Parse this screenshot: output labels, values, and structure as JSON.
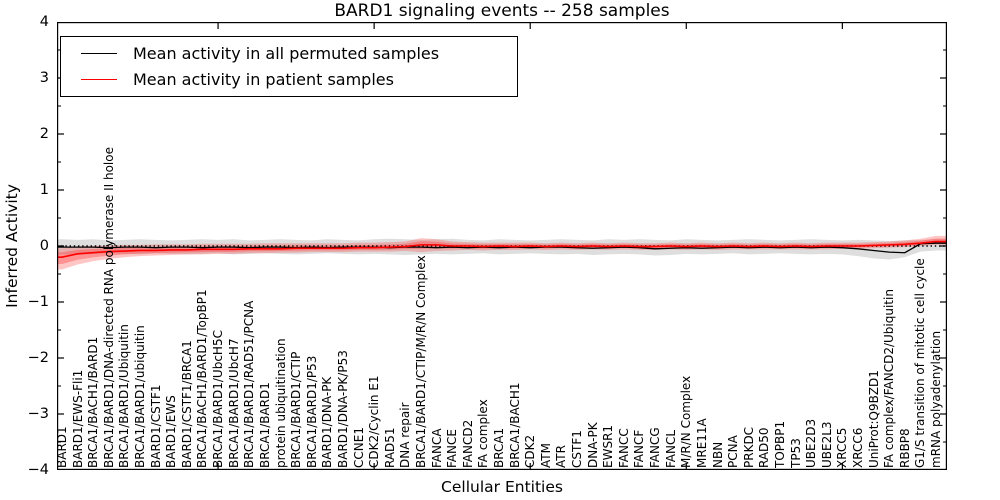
{
  "chart_data": {
    "type": "line",
    "title": "BARD1 signaling events -- 258 samples",
    "xlabel": "Cellular Entities",
    "ylabel": "Inferred Activity",
    "ylim": [
      -4,
      4
    ],
    "yticks": [
      4,
      3,
      2,
      1,
      0,
      -1,
      -2,
      -3,
      -4
    ],
    "xtick_indices": [
      10,
      20,
      30,
      40,
      50
    ],
    "grid": false,
    "legend_position": "upper left",
    "zero_reference_line": "dotted black at y=0",
    "categories": [
      "BARD1",
      "BARD1/EWS-Fli1",
      "BRCA1/BACH1/BARD1",
      "BRCA1/BARD1/DNA-directed RNA polymerase II holoe",
      "BRCA1/BARD1/Ubiquitin",
      "BRCA1/BARD1/ubiquitin",
      "BARD1/CSTF1",
      "BARD1/EWS",
      "BARD1/CSTF1/BRCA1",
      "BRCA1/BACH1/BARD1/TopBP1",
      "BRCA1/BARD1/UbcH5C",
      "BRCA1/BARD1/UbcH7",
      "BRCA1/BARD1/RAD51/PCNA",
      "BRCA1/BARD1",
      "protein ubiquitination",
      "BRCA1/BARD1/CTIP",
      "BRCA1/BARD1/P53",
      "BARD1/DNA-PK",
      "BARD1/DNA-PK/P53",
      "CCNE1",
      "CDK2/Cyclin E1",
      "RAD51",
      "DNA repair",
      "BRCA1/BARD1/CTIP/M/R/N Complex",
      "FANCA",
      "FANCE",
      "FANCD2",
      "FA complex",
      "BRCA1",
      "BRCA1/BACH1",
      "CDK2",
      "ATM",
      "ATR",
      "CSTF1",
      "DNA-PK",
      "EWSR1",
      "FANCC",
      "FANCF",
      "FANCG",
      "FANCL",
      "M/R/N Complex",
      "MRE11A",
      "NBN",
      "PCNA",
      "PRKDC",
      "RAD50",
      "TOPBP1",
      "TP53",
      "UBE2D3",
      "UBE2L3",
      "XRCC5",
      "XRCC6",
      "UniProt:Q9BZD1",
      "FA complex/FANCD2/Ubiquitin",
      "RBBP8",
      "G1/S transition of mitotic cell cycle",
      "mRNA polyadenylation"
    ],
    "series": [
      {
        "name": "Mean activity in all permuted samples",
        "color": "#000000",
        "band_color": "#c8c8c8",
        "values": [
          -0.02,
          -0.02,
          -0.02,
          -0.03,
          -0.02,
          -0.02,
          -0.03,
          -0.02,
          -0.02,
          -0.03,
          -0.02,
          -0.02,
          -0.03,
          -0.02,
          -0.02,
          -0.03,
          -0.02,
          -0.03,
          -0.02,
          -0.02,
          -0.02,
          -0.03,
          -0.02,
          -0.02,
          -0.03,
          -0.02,
          -0.03,
          -0.02,
          -0.03,
          -0.02,
          -0.03,
          -0.02,
          -0.02,
          -0.03,
          -0.04,
          -0.03,
          -0.02,
          -0.03,
          -0.05,
          -0.04,
          -0.03,
          -0.04,
          -0.03,
          -0.02,
          -0.03,
          -0.02,
          -0.03,
          -0.02,
          -0.03,
          -0.02,
          -0.03,
          -0.05,
          -0.08,
          -0.11,
          -0.12,
          0.04,
          0.05
        ],
        "band_upper": [
          0.12,
          0.11,
          0.12,
          0.1,
          0.11,
          0.12,
          0.11,
          0.1,
          0.11,
          0.12,
          0.11,
          0.12,
          0.1,
          0.11,
          0.12,
          0.11,
          0.1,
          0.12,
          0.11,
          0.1,
          0.12,
          0.13,
          0.12,
          0.11,
          0.12,
          0.13,
          0.11,
          0.1,
          0.12,
          0.11,
          0.1,
          0.11,
          0.12,
          0.11,
          0.1,
          0.12,
          0.11,
          0.12,
          0.11,
          0.1,
          0.12,
          0.11,
          0.1,
          0.11,
          0.12,
          0.11,
          0.1,
          0.11,
          0.12,
          0.11,
          0.1,
          0.11,
          0.1,
          0.09,
          0.1,
          0.11,
          0.12
        ],
        "band_lower": [
          -0.15,
          -0.16,
          -0.14,
          -0.13,
          -0.14,
          -0.15,
          -0.13,
          -0.14,
          -0.15,
          -0.14,
          -0.13,
          -0.15,
          -0.14,
          -0.13,
          -0.14,
          -0.15,
          -0.14,
          -0.13,
          -0.14,
          -0.15,
          -0.14,
          -0.15,
          -0.16,
          -0.15,
          -0.14,
          -0.15,
          -0.14,
          -0.13,
          -0.15,
          -0.14,
          -0.13,
          -0.14,
          -0.15,
          -0.14,
          -0.16,
          -0.15,
          -0.14,
          -0.15,
          -0.17,
          -0.16,
          -0.14,
          -0.15,
          -0.14,
          -0.13,
          -0.15,
          -0.14,
          -0.13,
          -0.14,
          -0.15,
          -0.14,
          -0.15,
          -0.18,
          -0.22,
          -0.24,
          -0.2,
          -0.1,
          -0.08
        ]
      },
      {
        "name": "Mean activity in patient samples",
        "color": "#ff0000",
        "band_color": "#ff3333",
        "values": [
          -0.2,
          -0.14,
          -0.12,
          -0.1,
          -0.09,
          -0.08,
          -0.08,
          -0.07,
          -0.07,
          -0.06,
          -0.06,
          -0.06,
          -0.05,
          -0.05,
          -0.05,
          -0.04,
          -0.04,
          -0.04,
          -0.04,
          -0.03,
          -0.03,
          -0.02,
          -0.01,
          0.02,
          0.02,
          0.0,
          0.0,
          -0.01,
          0.0,
          -0.01,
          0.0,
          -0.01,
          0.0,
          -0.01,
          0.0,
          -0.01,
          0.0,
          -0.01,
          -0.01,
          0.0,
          -0.01,
          0.0,
          -0.01,
          0.0,
          -0.01,
          0.0,
          -0.01,
          0.0,
          -0.01,
          0.0,
          0.0,
          0.0,
          0.01,
          0.02,
          0.03,
          0.05,
          0.08
        ],
        "band_upper": [
          -0.04,
          -0.01,
          0.0,
          0.01,
          0.02,
          0.02,
          0.03,
          0.03,
          0.03,
          0.04,
          0.04,
          0.04,
          0.04,
          0.05,
          0.05,
          0.05,
          0.05,
          0.05,
          0.05,
          0.06,
          0.06,
          0.07,
          0.08,
          0.14,
          0.12,
          0.08,
          0.07,
          0.06,
          0.06,
          0.06,
          0.06,
          0.05,
          0.06,
          0.05,
          0.06,
          0.05,
          0.06,
          0.05,
          0.05,
          0.06,
          0.05,
          0.06,
          0.05,
          0.06,
          0.05,
          0.06,
          0.05,
          0.06,
          0.05,
          0.06,
          0.06,
          0.06,
          0.07,
          0.08,
          0.1,
          0.13,
          0.18
        ],
        "band_lower": [
          -0.42,
          -0.33,
          -0.27,
          -0.23,
          -0.2,
          -0.18,
          -0.17,
          -0.16,
          -0.15,
          -0.15,
          -0.14,
          -0.14,
          -0.13,
          -0.13,
          -0.12,
          -0.12,
          -0.11,
          -0.11,
          -0.11,
          -0.1,
          -0.1,
          -0.1,
          -0.09,
          -0.11,
          -0.09,
          -0.08,
          -0.07,
          -0.08,
          -0.07,
          -0.07,
          -0.06,
          -0.07,
          -0.06,
          -0.07,
          -0.06,
          -0.07,
          -0.06,
          -0.07,
          -0.07,
          -0.06,
          -0.07,
          -0.06,
          -0.07,
          -0.06,
          -0.06,
          -0.06,
          -0.06,
          -0.06,
          -0.06,
          -0.06,
          -0.05,
          -0.05,
          -0.04,
          -0.03,
          -0.02,
          0.0,
          0.02
        ]
      }
    ]
  }
}
